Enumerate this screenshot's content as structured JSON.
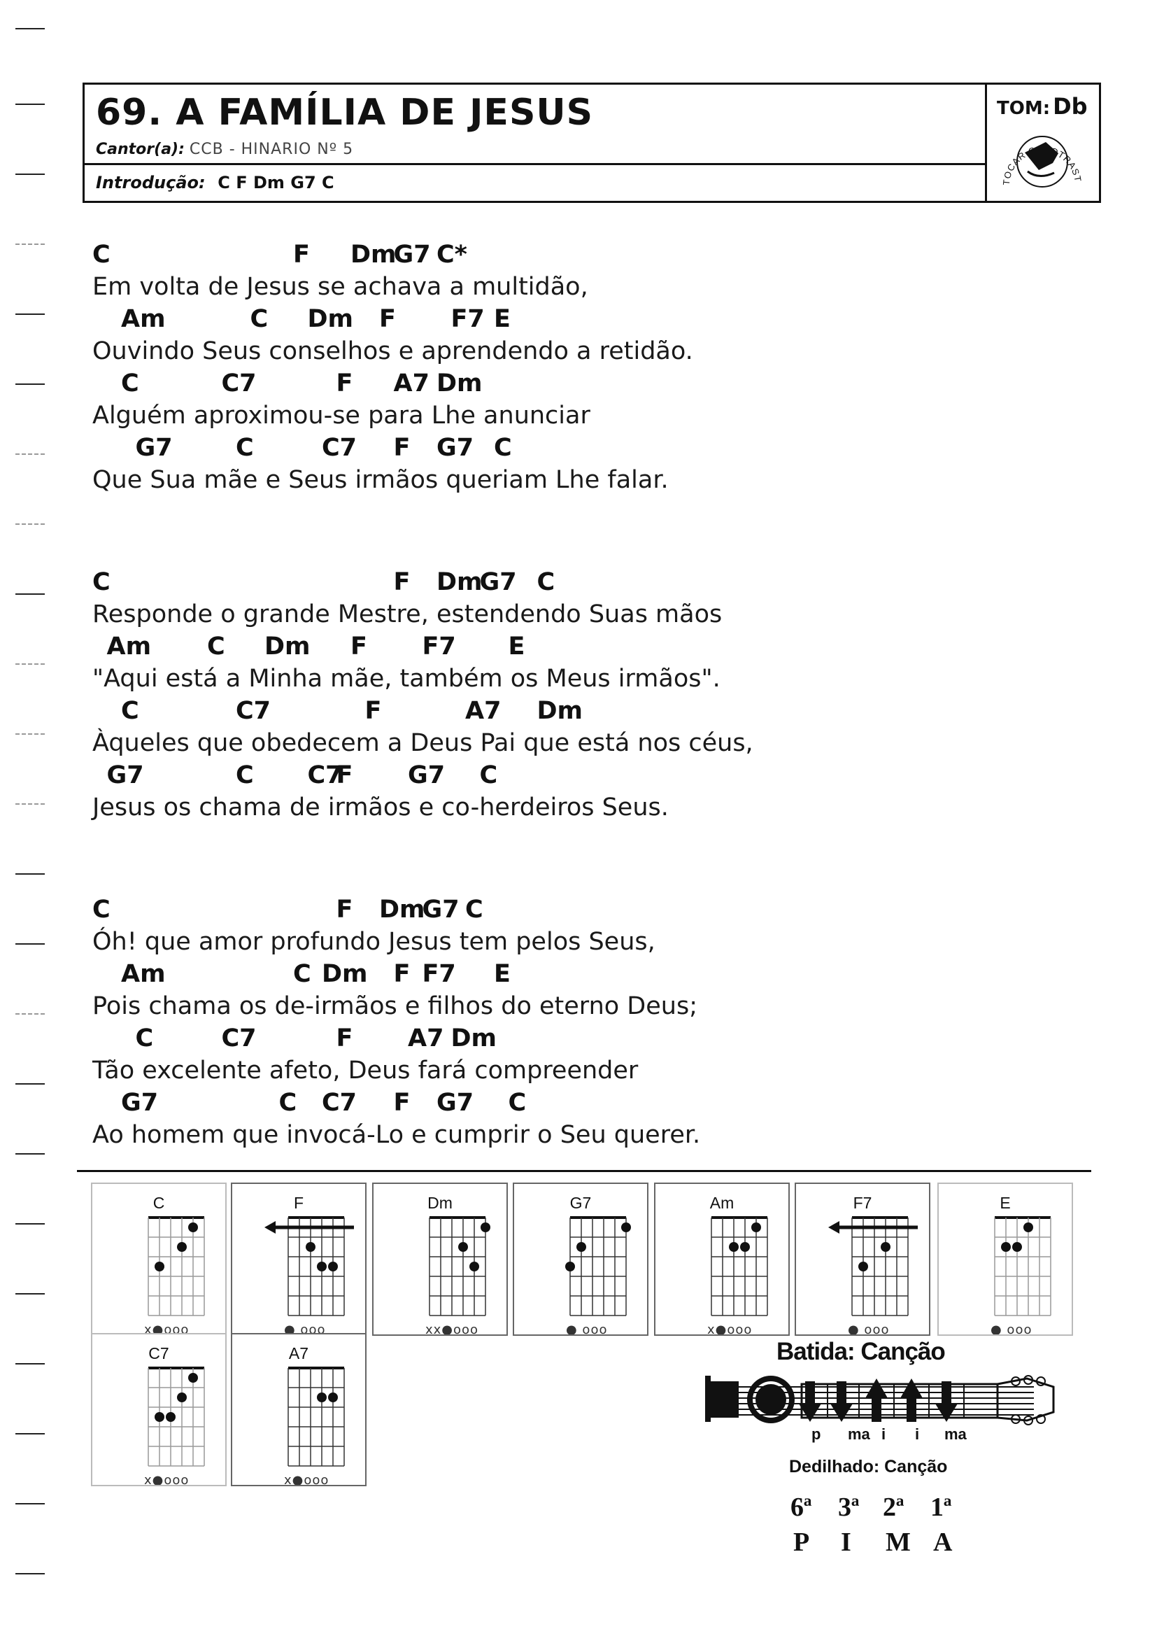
{
  "header": {
    "title": "69. A FAMÍLIA DE JESUS",
    "cantor_label": "Cantor(a):",
    "cantor_value": "CCB - HINARIO Nº 5",
    "intro_label": "Introdução:",
    "intro_value": "C F Dm G7 C",
    "tom_label": "TOM:",
    "tom_value": "Db",
    "capo_stamp": "TOCAR CAPOTRASTE 1ª CASA"
  },
  "stanzas": [
    {
      "lines": [
        {
          "chords": [
            {
              "c": "C",
              "col": 0
            },
            {
              "c": "F",
              "col": 14
            },
            {
              "c": "Dm",
              "col": 18
            },
            {
              "c": "G7",
              "col": 21
            },
            {
              "c": "C*",
              "col": 24
            }
          ],
          "lyric": "Em volta de Jesus se achava a multidão,"
        },
        {
          "chords": [
            {
              "c": "Am",
              "col": 2
            },
            {
              "c": "C",
              "col": 11
            },
            {
              "c": "Dm",
              "col": 15
            },
            {
              "c": "F",
              "col": 20
            },
            {
              "c": "F7",
              "col": 25
            },
            {
              "c": "E",
              "col": 28
            }
          ],
          "lyric": "Ouvindo Seus conselhos e aprendendo a retidão."
        },
        {
          "chords": [
            {
              "c": "C",
              "col": 2
            },
            {
              "c": "C7",
              "col": 9
            },
            {
              "c": "F",
              "col": 17
            },
            {
              "c": "A7",
              "col": 21
            },
            {
              "c": "Dm",
              "col": 24
            }
          ],
          "lyric": "Alguém aproximou-se para Lhe anunciar"
        },
        {
          "chords": [
            {
              "c": "G7",
              "col": 3
            },
            {
              "c": "C",
              "col": 10
            },
            {
              "c": "C7",
              "col": 16
            },
            {
              "c": "F",
              "col": 21
            },
            {
              "c": "G7",
              "col": 24
            },
            {
              "c": "C",
              "col": 28
            }
          ],
          "lyric": "Que Sua mãe e Seus irmãos queriam Lhe falar."
        }
      ]
    },
    {
      "lines": [
        {
          "chords": [
            {
              "c": "C",
              "col": 0
            },
            {
              "c": "F",
              "col": 21
            },
            {
              "c": "Dm",
              "col": 24
            },
            {
              "c": "G7",
              "col": 27
            },
            {
              "c": "C",
              "col": 31
            }
          ],
          "lyric": "Responde o grande Mestre, estendendo Suas mãos"
        },
        {
          "chords": [
            {
              "c": "Am",
              "col": 1
            },
            {
              "c": "C",
              "col": 8
            },
            {
              "c": "Dm",
              "col": 12
            },
            {
              "c": "F",
              "col": 18
            },
            {
              "c": "F7",
              "col": 23
            },
            {
              "c": "E",
              "col": 29
            }
          ],
          "lyric": "\"Aqui está a Minha mãe, também os Meus irmãos\"."
        },
        {
          "chords": [
            {
              "c": "C",
              "col": 2
            },
            {
              "c": "C7",
              "col": 10
            },
            {
              "c": "F",
              "col": 19
            },
            {
              "c": "A7",
              "col": 26
            },
            {
              "c": "Dm",
              "col": 31
            }
          ],
          "lyric": "Àqueles que obedecem a Deus Pai que está nos céus,"
        },
        {
          "chords": [
            {
              "c": "G7",
              "col": 1
            },
            {
              "c": "C",
              "col": 10
            },
            {
              "c": "C7",
              "col": 15
            },
            {
              "c": "F",
              "col": 17
            },
            {
              "c": "G7",
              "col": 22
            },
            {
              "c": "C",
              "col": 27
            }
          ],
          "lyric": "Jesus os chama de irmãos e co-herdeiros Seus."
        }
      ]
    },
    {
      "lines": [
        {
          "chords": [
            {
              "c": "C",
              "col": 0
            },
            {
              "c": "F",
              "col": 17
            },
            {
              "c": "Dm",
              "col": 20
            },
            {
              "c": "G7",
              "col": 23
            },
            {
              "c": "C",
              "col": 26
            }
          ],
          "lyric": "Óh! que amor profundo Jesus tem pelos Seus,"
        },
        {
          "chords": [
            {
              "c": "Am",
              "col": 2
            },
            {
              "c": "C",
              "col": 14
            },
            {
              "c": "Dm",
              "col": 16
            },
            {
              "c": "F",
              "col": 21
            },
            {
              "c": "F7",
              "col": 23
            },
            {
              "c": "E",
              "col": 28
            }
          ],
          "lyric": "Pois chama os de-irmãos e filhos do eterno Deus;"
        },
        {
          "chords": [
            {
              "c": "C",
              "col": 3
            },
            {
              "c": "C7",
              "col": 9
            },
            {
              "c": "F",
              "col": 17
            },
            {
              "c": "A7",
              "col": 22
            },
            {
              "c": "Dm",
              "col": 25
            }
          ],
          "lyric": "Tão excelente afeto, Deus fará compreender"
        },
        {
          "chords": [
            {
              "c": "G7",
              "col": 2
            },
            {
              "c": "C",
              "col": 13
            },
            {
              "c": "C7",
              "col": 16
            },
            {
              "c": "F",
              "col": 21
            },
            {
              "c": "G7",
              "col": 24
            },
            {
              "c": "C",
              "col": 29
            }
          ],
          "lyric": "Ao homem que invocá-Lo e cumprir o Seu querer."
        }
      ]
    }
  ],
  "chord_diagrams": [
    {
      "name": "C",
      "barre": false,
      "dots": [
        [
          5,
          1
        ],
        [
          4,
          2
        ],
        [
          2,
          3
        ]
      ],
      "open": "x●ooo",
      "light": true
    },
    {
      "name": "F",
      "barre": true,
      "dots": [
        [
          3,
          2
        ],
        [
          4,
          3
        ],
        [
          5,
          3
        ]
      ],
      "open": "● ooo",
      "light": false
    },
    {
      "name": "Dm",
      "barre": false,
      "dots": [
        [
          6,
          1
        ],
        [
          4,
          2
        ],
        [
          5,
          3
        ]
      ],
      "open": "xx●ooo",
      "light": false
    },
    {
      "name": "G7",
      "barre": false,
      "dots": [
        [
          6,
          1
        ],
        [
          2,
          2
        ],
        [
          1,
          3
        ]
      ],
      "open": "●  ooo",
      "light": false
    },
    {
      "name": "Am",
      "barre": false,
      "dots": [
        [
          5,
          1
        ],
        [
          3,
          2
        ],
        [
          4,
          2
        ]
      ],
      "open": "x●ooo",
      "light": false
    },
    {
      "name": "F7",
      "barre": true,
      "dots": [
        [
          4,
          2
        ],
        [
          2,
          3
        ]
      ],
      "open": "● ooo",
      "light": false
    },
    {
      "name": "E",
      "barre": false,
      "dots": [
        [
          4,
          1
        ],
        [
          2,
          2
        ],
        [
          3,
          2
        ]
      ],
      "open": "● ooo",
      "light": true
    },
    {
      "name": "C7",
      "barre": false,
      "dots": [
        [
          5,
          1
        ],
        [
          4,
          2
        ],
        [
          2,
          3
        ],
        [
          3,
          3
        ]
      ],
      "open": "x●ooo",
      "light": true
    },
    {
      "name": "A7",
      "barre": false,
      "dots": [
        [
          4,
          2
        ],
        [
          5,
          2
        ]
      ],
      "open": "x●ooo",
      "light": false
    }
  ],
  "strumming": {
    "title": "Batida: Canção",
    "fingers": [
      "p",
      "ma",
      "i",
      "i",
      "ma"
    ],
    "directions": [
      "down",
      "down",
      "up",
      "up",
      "down"
    ]
  },
  "fingerpicking": {
    "title": "Dedilhado: Canção",
    "strings": [
      "6ª",
      "3ª",
      "2ª",
      "1ª"
    ],
    "letters": [
      "P",
      "I",
      "M",
      "A"
    ]
  }
}
